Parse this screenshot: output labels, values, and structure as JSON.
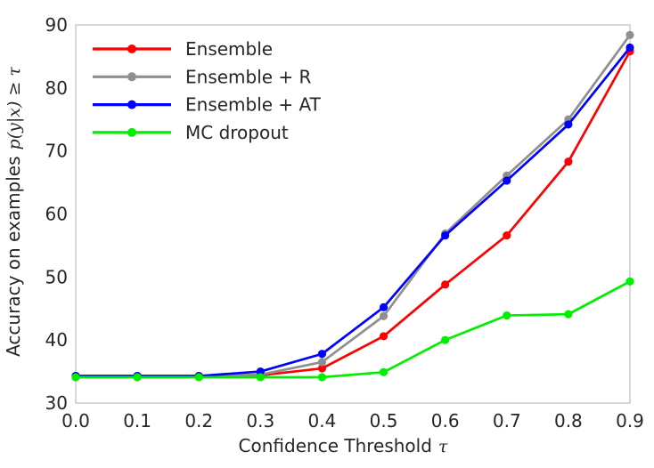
{
  "chart_data": {
    "type": "line",
    "x": [
      0.0,
      0.1,
      0.2,
      0.3,
      0.4,
      0.5,
      0.6,
      0.7,
      0.8,
      0.9
    ],
    "series": [
      {
        "name": "Ensemble",
        "color": "#ff0000",
        "values": [
          34.3,
          34.3,
          34.3,
          34.4,
          35.5,
          40.6,
          48.8,
          56.6,
          68.3,
          85.8
        ]
      },
      {
        "name": "Ensemble + R",
        "color": "#8f8f8f",
        "values": [
          34.3,
          34.3,
          34.3,
          34.5,
          36.5,
          43.8,
          56.9,
          66.1,
          75.0,
          88.4
        ]
      },
      {
        "name": "Ensemble + AT",
        "color": "#0000ff",
        "values": [
          34.3,
          34.3,
          34.3,
          35.0,
          37.8,
          45.2,
          56.6,
          65.3,
          74.2,
          86.4
        ]
      },
      {
        "name": "MC dropout",
        "color": "#00ee00",
        "values": [
          34.1,
          34.1,
          34.1,
          34.1,
          34.1,
          34.9,
          40.0,
          43.9,
          44.1,
          49.3
        ]
      }
    ],
    "xlabel": {
      "text": "Confidence Threshold",
      "math": "τ"
    },
    "ylabel": {
      "text": "Accuracy on examples",
      "math": "p(y|x) ≥ τ"
    },
    "xlim": [
      0.0,
      0.9
    ],
    "ylim": [
      30,
      90
    ],
    "xticks": [
      "0.0",
      "0.1",
      "0.2",
      "0.3",
      "0.4",
      "0.5",
      "0.6",
      "0.7",
      "0.8",
      "0.9"
    ],
    "yticks": [
      "30",
      "40",
      "50",
      "60",
      "70",
      "80",
      "90"
    ],
    "grid": false,
    "legend_position": "upper left",
    "text_color": "#262626",
    "spine_color": "#cbcbcb"
  }
}
